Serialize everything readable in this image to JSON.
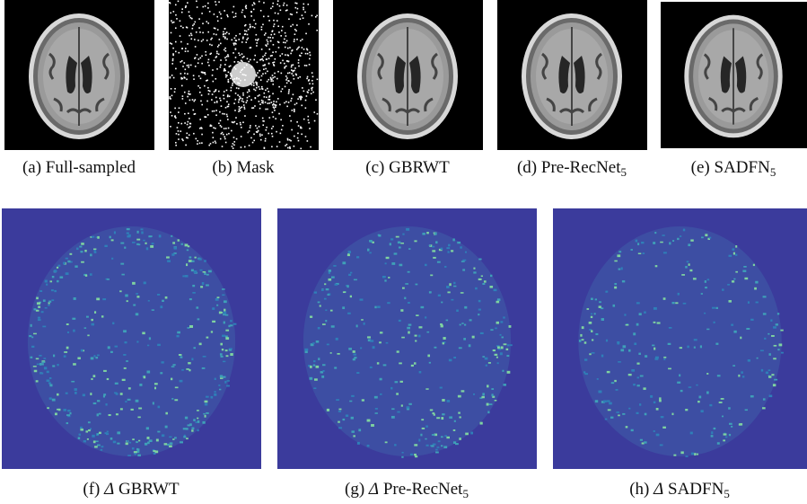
{
  "panels": [
    {
      "label": "(a)",
      "caption": "Full-sampled"
    },
    {
      "label": "(b)",
      "caption": "Mask"
    },
    {
      "label": "(c)",
      "caption": "GBRWT"
    },
    {
      "label": "(d)",
      "caption": "Pre-RecNet",
      "subscript": "5"
    },
    {
      "label": "(e)",
      "caption": "SADFN",
      "subscript": "5"
    },
    {
      "label": "(f)",
      "symbol": "Δ",
      "caption": "GBRWT"
    },
    {
      "label": "(g)",
      "symbol": "Δ",
      "caption": "Pre-RecNet",
      "subscript": "5"
    },
    {
      "label": "(h)",
      "symbol": "Δ",
      "caption": "SADFN",
      "subscript": "5"
    }
  ]
}
